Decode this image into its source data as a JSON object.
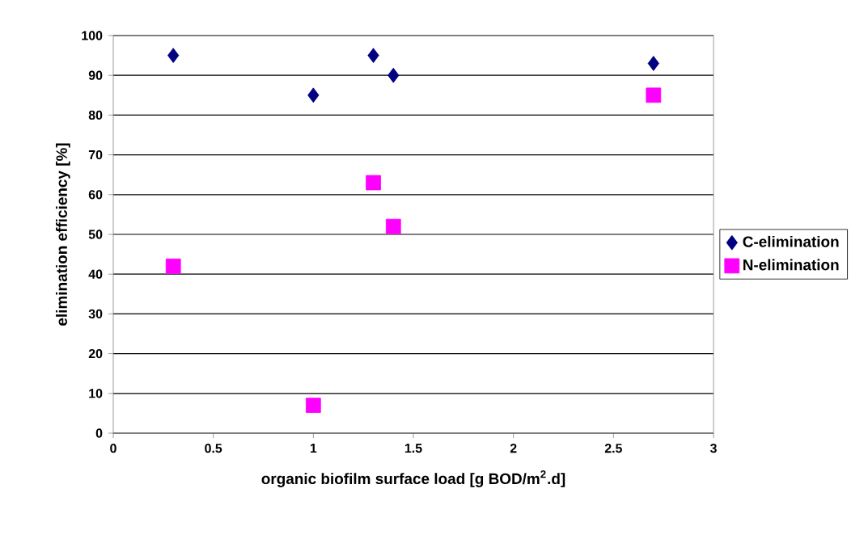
{
  "chart_data": {
    "type": "scatter",
    "xlabel": "organic biofilm surface load [g BOD/m$^{2}$.d]",
    "ylabel": "elimination efficiency [%]",
    "x": [
      0.3,
      1.0,
      1.3,
      1.4,
      2.7
    ],
    "series": [
      {
        "name": "C-elimination",
        "color": "#000080",
        "marker": "diamond",
        "values": [
          95,
          85,
          95,
          90,
          93
        ]
      },
      {
        "name": "N-elimination",
        "color": "#ff00ff",
        "marker": "square",
        "values": [
          42,
          7,
          63,
          52,
          85
        ]
      }
    ],
    "xlim": [
      0,
      3
    ],
    "xticks": [
      0,
      0.5,
      1,
      1.5,
      2,
      2.5,
      3
    ],
    "ylim": [
      0,
      100
    ],
    "yticks": [
      0,
      10,
      20,
      30,
      40,
      50,
      60,
      70,
      80,
      90,
      100
    ],
    "grid": "y",
    "legend": "right"
  }
}
